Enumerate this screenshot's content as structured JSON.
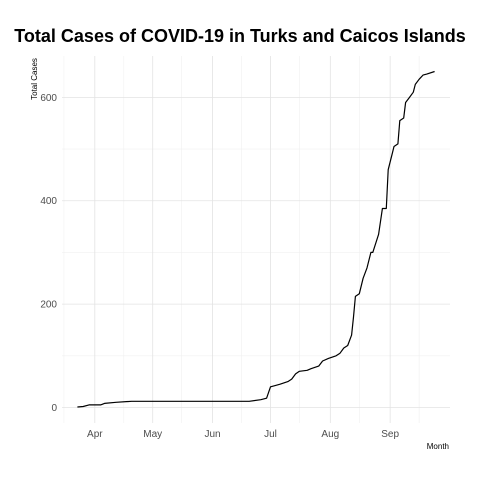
{
  "chart_data": {
    "type": "line",
    "title": "Total Cases of COVID-19 in Turks and Caicos Islands",
    "xlabel": "Month",
    "ylabel": "Total Cases",
    "x_ticks": [
      "Apr",
      "May",
      "Jun",
      "Jul",
      "Aug",
      "Sep"
    ],
    "y_ticks": [
      0,
      200,
      400,
      600
    ],
    "xlim": [
      "2020-03-15",
      "2020-10-02"
    ],
    "ylim": [
      -30,
      680
    ],
    "grid": true,
    "series": [
      {
        "color": "#000000",
        "x": [
          "2020-03-23",
          "2020-03-26",
          "2020-03-29",
          "2020-04-04",
          "2020-04-06",
          "2020-04-12",
          "2020-04-20",
          "2020-04-30",
          "2020-05-10",
          "2020-05-20",
          "2020-06-01",
          "2020-06-20",
          "2020-06-26",
          "2020-06-29",
          "2020-07-01",
          "2020-07-03",
          "2020-07-06",
          "2020-07-10",
          "2020-07-12",
          "2020-07-14",
          "2020-07-16",
          "2020-07-20",
          "2020-07-22",
          "2020-07-26",
          "2020-07-28",
          "2020-07-31",
          "2020-08-04",
          "2020-08-06",
          "2020-08-08",
          "2020-08-10",
          "2020-08-12",
          "2020-08-13",
          "2020-08-14",
          "2020-08-16",
          "2020-08-18",
          "2020-08-20",
          "2020-08-22",
          "2020-08-23",
          "2020-08-26",
          "2020-08-28",
          "2020-08-30",
          "2020-08-31",
          "2020-09-02",
          "2020-09-03",
          "2020-09-05",
          "2020-09-06",
          "2020-09-08",
          "2020-09-09",
          "2020-09-11",
          "2020-09-13",
          "2020-09-14",
          "2020-09-16",
          "2020-09-18",
          "2020-09-20",
          "2020-09-24"
        ],
        "y": [
          1,
          2,
          5,
          5,
          8,
          10,
          12,
          12,
          12,
          12,
          12,
          12,
          15,
          18,
          40,
          42,
          45,
          50,
          55,
          65,
          70,
          72,
          75,
          80,
          90,
          95,
          100,
          105,
          115,
          120,
          140,
          175,
          215,
          220,
          250,
          270,
          300,
          300,
          335,
          385,
          385,
          460,
          490,
          505,
          510,
          555,
          560,
          590,
          600,
          610,
          625,
          635,
          643,
          645,
          650
        ]
      }
    ]
  }
}
